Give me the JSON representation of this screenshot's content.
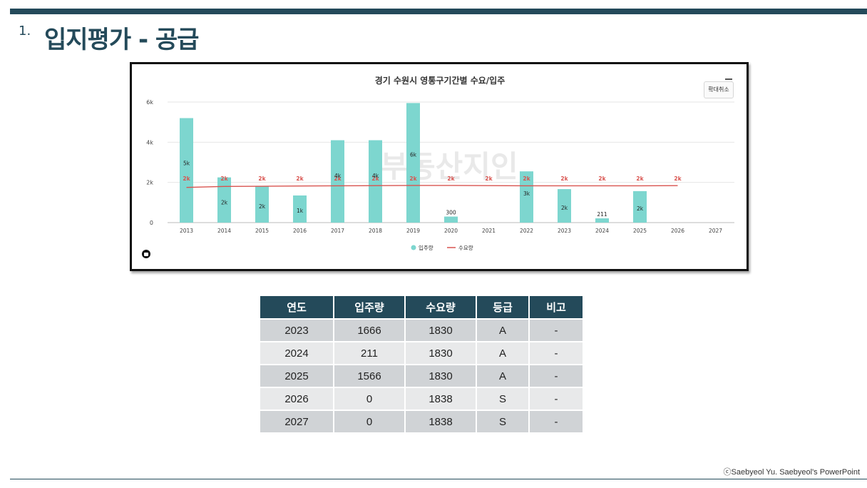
{
  "slide": {
    "number": "1.",
    "title": "입지평가 - 공급",
    "copyright": "ⓒSaebyeol Yu.  Saebyeol's PowerPoint"
  },
  "chart_controls": {
    "zoom_label": "확대취소"
  },
  "chart_data": {
    "type": "bar",
    "title": "경기 수원시 영통구기간별 수요/입주",
    "watermark": "부동산지인",
    "categories": [
      "2013",
      "2014",
      "2015",
      "2016",
      "2017",
      "2018",
      "2019",
      "2020",
      "2021",
      "2022",
      "2023",
      "2024",
      "2025",
      "2026",
      "2027"
    ],
    "ylim": [
      0,
      6000
    ],
    "yticks": [
      0,
      2000,
      4000,
      6000
    ],
    "ytick_labels": [
      "0",
      "2k",
      "4k",
      "6k"
    ],
    "grid": true,
    "legend_position": "bottom",
    "series": [
      {
        "name": "입주량",
        "type": "bar",
        "color": "#7dd6cf",
        "values": [
          5200,
          2250,
          1800,
          1350,
          4100,
          4100,
          5950,
          300,
          0,
          2550,
          1666,
          211,
          1566,
          null,
          null
        ],
        "labels": [
          "5k",
          "2k",
          "2k",
          "1k",
          "4k",
          "4k",
          "6k",
          "300",
          "",
          "3k",
          "2k",
          "211",
          "2k",
          "",
          ""
        ]
      },
      {
        "name": "수요량",
        "type": "line",
        "color": "#d9534f",
        "values": [
          1750,
          1800,
          1810,
          1820,
          1830,
          1840,
          1850,
          1850,
          1840,
          1830,
          1830,
          1830,
          1830,
          1838,
          null
        ],
        "labels": [
          "2k",
          "2k",
          "2k",
          "2k",
          "2k",
          "2k",
          "2k",
          "2k",
          "2k",
          "2k",
          "2k",
          "2k",
          "2k",
          "2k",
          ""
        ]
      }
    ]
  },
  "table": {
    "headers": [
      "연도",
      "입주량",
      "수요량",
      "등급",
      "비고"
    ],
    "rows": [
      [
        "2023",
        "1666",
        "1830",
        "A",
        "-"
      ],
      [
        "2024",
        "211",
        "1830",
        "A",
        "-"
      ],
      [
        "2025",
        "1566",
        "1830",
        "A",
        "-"
      ],
      [
        "2026",
        "0",
        "1838",
        "S",
        "-"
      ],
      [
        "2027",
        "0",
        "1838",
        "S",
        "-"
      ]
    ]
  }
}
